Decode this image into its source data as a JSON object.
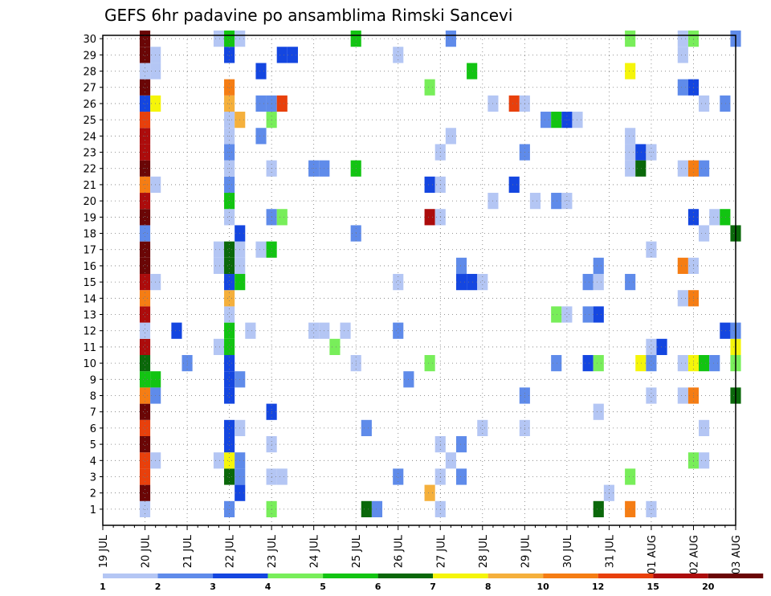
{
  "chart_data": {
    "type": "heatmap",
    "title": "GEFS 6hr padavine po ansamblima Rimski Sancevi",
    "xlabel": "",
    "ylabel": "",
    "x_ticks": [
      "19 JUL",
      "20 JUL",
      "21 JUL",
      "22 JUL",
      "23 JUL",
      "24 JUL",
      "25 JUL",
      "26 JUL",
      "27 JUL",
      "28 JUL",
      "29 JUL",
      "30 JUL",
      "31 JUL",
      "01 AUG",
      "02 AUG",
      "03 AUG"
    ],
    "y_ticks": [
      "1",
      "2",
      "3",
      "4",
      "5",
      "6",
      "7",
      "8",
      "9",
      "10",
      "11",
      "12",
      "13",
      "14",
      "15",
      "16",
      "17",
      "18",
      "19",
      "20",
      "21",
      "22",
      "23",
      "24",
      "25",
      "26",
      "27",
      "28",
      "29",
      "30"
    ],
    "grid": true,
    "colorbar": {
      "labels": [
        "1",
        "2",
        "3",
        "4",
        "5",
        "6",
        "7",
        "8",
        "10",
        "12",
        "15",
        "20"
      ],
      "colors": [
        "#b4c6f4",
        "#5f8bea",
        "#1446e0",
        "#78ee5a",
        "#12c412",
        "#0a680a",
        "#f5f50a",
        "#f5b03c",
        "#f57d14",
        "#e8400c",
        "#ac0c0c",
        "#6a0606"
      ]
    },
    "cells_description": "Each cell = [x_index (6-hourly step from 19 JUL 00Z), member (1-30), colorbar class index 0-11]",
    "cells": [
      [
        4,
        1,
        0
      ],
      [
        4,
        2,
        11
      ],
      [
        4,
        3,
        9
      ],
      [
        4,
        4,
        9
      ],
      [
        4,
        5,
        11
      ],
      [
        4,
        6,
        9
      ],
      [
        4,
        7,
        11
      ],
      [
        4,
        8,
        8
      ],
      [
        4,
        9,
        4
      ],
      [
        4,
        10,
        5
      ],
      [
        4,
        11,
        10
      ],
      [
        4,
        12,
        0
      ],
      [
        4,
        13,
        10
      ],
      [
        4,
        14,
        8
      ],
      [
        4,
        15,
        10
      ],
      [
        4,
        16,
        11
      ],
      [
        4,
        17,
        11
      ],
      [
        4,
        18,
        1
      ],
      [
        4,
        19,
        11
      ],
      [
        4,
        20,
        10
      ],
      [
        4,
        21,
        8
      ],
      [
        4,
        22,
        11
      ],
      [
        4,
        23,
        10
      ],
      [
        4,
        24,
        10
      ],
      [
        4,
        25,
        9
      ],
      [
        4,
        26,
        2
      ],
      [
        4,
        27,
        11
      ],
      [
        4,
        28,
        0
      ],
      [
        4,
        29,
        11
      ],
      [
        4,
        30,
        11
      ],
      [
        5,
        4,
        0
      ],
      [
        5,
        8,
        1
      ],
      [
        5,
        9,
        4
      ],
      [
        5,
        15,
        0
      ],
      [
        5,
        21,
        0
      ],
      [
        5,
        26,
        6
      ],
      [
        5,
        28,
        0
      ],
      [
        5,
        29,
        0
      ],
      [
        7,
        12,
        2
      ],
      [
        8,
        10,
        1
      ],
      [
        11,
        4,
        0
      ],
      [
        11,
        11,
        0
      ],
      [
        11,
        16,
        0
      ],
      [
        11,
        17,
        0
      ],
      [
        11,
        30,
        0
      ],
      [
        12,
        1,
        1
      ],
      [
        12,
        3,
        5
      ],
      [
        12,
        4,
        6
      ],
      [
        12,
        5,
        2
      ],
      [
        12,
        6,
        2
      ],
      [
        12,
        8,
        2
      ],
      [
        12,
        9,
        2
      ],
      [
        12,
        10,
        2
      ],
      [
        12,
        11,
        4
      ],
      [
        12,
        12,
        4
      ],
      [
        12,
        13,
        0
      ],
      [
        12,
        14,
        7
      ],
      [
        12,
        15,
        2
      ],
      [
        12,
        16,
        5
      ],
      [
        12,
        17,
        5
      ],
      [
        12,
        19,
        0
      ],
      [
        12,
        20,
        4
      ],
      [
        12,
        21,
        1
      ],
      [
        12,
        22,
        0
      ],
      [
        12,
        23,
        1
      ],
      [
        12,
        24,
        0
      ],
      [
        12,
        25,
        0
      ],
      [
        12,
        26,
        7
      ],
      [
        12,
        27,
        8
      ],
      [
        12,
        29,
        2
      ],
      [
        12,
        30,
        4
      ],
      [
        13,
        2,
        2
      ],
      [
        13,
        3,
        1
      ],
      [
        13,
        4,
        1
      ],
      [
        13,
        6,
        0
      ],
      [
        13,
        9,
        1
      ],
      [
        13,
        15,
        4
      ],
      [
        13,
        16,
        0
      ],
      [
        13,
        17,
        0
      ],
      [
        13,
        18,
        2
      ],
      [
        13,
        25,
        7
      ],
      [
        13,
        30,
        0
      ],
      [
        14,
        12,
        0
      ],
      [
        15,
        17,
        0
      ],
      [
        15,
        24,
        1
      ],
      [
        15,
        26,
        1
      ],
      [
        15,
        28,
        2
      ],
      [
        16,
        1,
        3
      ],
      [
        16,
        3,
        0
      ],
      [
        16,
        5,
        0
      ],
      [
        16,
        7,
        2
      ],
      [
        16,
        17,
        4
      ],
      [
        16,
        19,
        1
      ],
      [
        16,
        22,
        0
      ],
      [
        16,
        25,
        3
      ],
      [
        16,
        26,
        1
      ],
      [
        17,
        3,
        0
      ],
      [
        17,
        19,
        3
      ],
      [
        17,
        26,
        9
      ],
      [
        17,
        29,
        2
      ],
      [
        18,
        29,
        2
      ],
      [
        20,
        12,
        0
      ],
      [
        20,
        22,
        1
      ],
      [
        21,
        22,
        1
      ],
      [
        21,
        12,
        0
      ],
      [
        22,
        11,
        3
      ],
      [
        23,
        12,
        0
      ],
      [
        24,
        10,
        0
      ],
      [
        24,
        18,
        1
      ],
      [
        24,
        22,
        4
      ],
      [
        24,
        30,
        4
      ],
      [
        25,
        6,
        1
      ],
      [
        25,
        1,
        5
      ],
      [
        26,
        1,
        1
      ],
      [
        28,
        3,
        1
      ],
      [
        28,
        12,
        1
      ],
      [
        28,
        15,
        0
      ],
      [
        28,
        29,
        0
      ],
      [
        29,
        9,
        1
      ],
      [
        31,
        2,
        7
      ],
      [
        31,
        10,
        3
      ],
      [
        31,
        19,
        10
      ],
      [
        31,
        21,
        2
      ],
      [
        31,
        27,
        3
      ],
      [
        32,
        1,
        0
      ],
      [
        32,
        3,
        0
      ],
      [
        32,
        5,
        0
      ],
      [
        32,
        19,
        0
      ],
      [
        32,
        21,
        0
      ],
      [
        32,
        23,
        0
      ],
      [
        33,
        4,
        0
      ],
      [
        33,
        24,
        0
      ],
      [
        33,
        30,
        1
      ],
      [
        34,
        3,
        1
      ],
      [
        34,
        5,
        1
      ],
      [
        34,
        15,
        2
      ],
      [
        34,
        16,
        1
      ],
      [
        35,
        15,
        2
      ],
      [
        35,
        28,
        4
      ],
      [
        36,
        15,
        0
      ],
      [
        36,
        6,
        0
      ],
      [
        37,
        20,
        0
      ],
      [
        37,
        26,
        0
      ],
      [
        39,
        21,
        2
      ],
      [
        39,
        26,
        9
      ],
      [
        40,
        6,
        0
      ],
      [
        40,
        8,
        1
      ],
      [
        40,
        23,
        1
      ],
      [
        40,
        26,
        0
      ],
      [
        41,
        20,
        0
      ],
      [
        42,
        25,
        1
      ],
      [
        43,
        10,
        1
      ],
      [
        43,
        13,
        3
      ],
      [
        43,
        20,
        1
      ],
      [
        43,
        25,
        4
      ],
      [
        44,
        13,
        0
      ],
      [
        44,
        20,
        0
      ],
      [
        44,
        25,
        2
      ],
      [
        45,
        25,
        0
      ],
      [
        46,
        10,
        2
      ],
      [
        46,
        13,
        1
      ],
      [
        46,
        15,
        1
      ],
      [
        47,
        1,
        5
      ],
      [
        47,
        7,
        0
      ],
      [
        47,
        10,
        3
      ],
      [
        47,
        13,
        2
      ],
      [
        47,
        15,
        0
      ],
      [
        47,
        16,
        1
      ],
      [
        48,
        2,
        0
      ],
      [
        50,
        1,
        8
      ],
      [
        50,
        3,
        3
      ],
      [
        50,
        15,
        1
      ],
      [
        50,
        22,
        0
      ],
      [
        50,
        23,
        0
      ],
      [
        50,
        24,
        0
      ],
      [
        50,
        28,
        6
      ],
      [
        50,
        30,
        3
      ],
      [
        51,
        10,
        6
      ],
      [
        51,
        22,
        5
      ],
      [
        51,
        23,
        2
      ],
      [
        52,
        1,
        0
      ],
      [
        52,
        8,
        0
      ],
      [
        52,
        10,
        1
      ],
      [
        52,
        11,
        0
      ],
      [
        52,
        17,
        0
      ],
      [
        52,
        23,
        0
      ],
      [
        53,
        11,
        2
      ],
      [
        55,
        8,
        0
      ],
      [
        55,
        10,
        0
      ],
      [
        55,
        14,
        0
      ],
      [
        55,
        16,
        8
      ],
      [
        55,
        22,
        0
      ],
      [
        55,
        27,
        1
      ],
      [
        55,
        29,
        0
      ],
      [
        55,
        30,
        0
      ],
      [
        56,
        4,
        3
      ],
      [
        56,
        8,
        8
      ],
      [
        56,
        10,
        6
      ],
      [
        56,
        14,
        8
      ],
      [
        56,
        16,
        0
      ],
      [
        56,
        19,
        2
      ],
      [
        56,
        22,
        8
      ],
      [
        56,
        27,
        2
      ],
      [
        56,
        30,
        3
      ],
      [
        57,
        4,
        0
      ],
      [
        57,
        6,
        0
      ],
      [
        57,
        10,
        4
      ],
      [
        57,
        18,
        0
      ],
      [
        57,
        22,
        1
      ],
      [
        57,
        26,
        0
      ],
      [
        58,
        10,
        1
      ],
      [
        58,
        19,
        0
      ],
      [
        59,
        12,
        2
      ],
      [
        59,
        19,
        4
      ],
      [
        59,
        26,
        1
      ],
      [
        60,
        8,
        5
      ],
      [
        60,
        10,
        3
      ],
      [
        60,
        11,
        6
      ],
      [
        60,
        12,
        1
      ],
      [
        60,
        18,
        5
      ],
      [
        60,
        30,
        1
      ]
    ]
  }
}
